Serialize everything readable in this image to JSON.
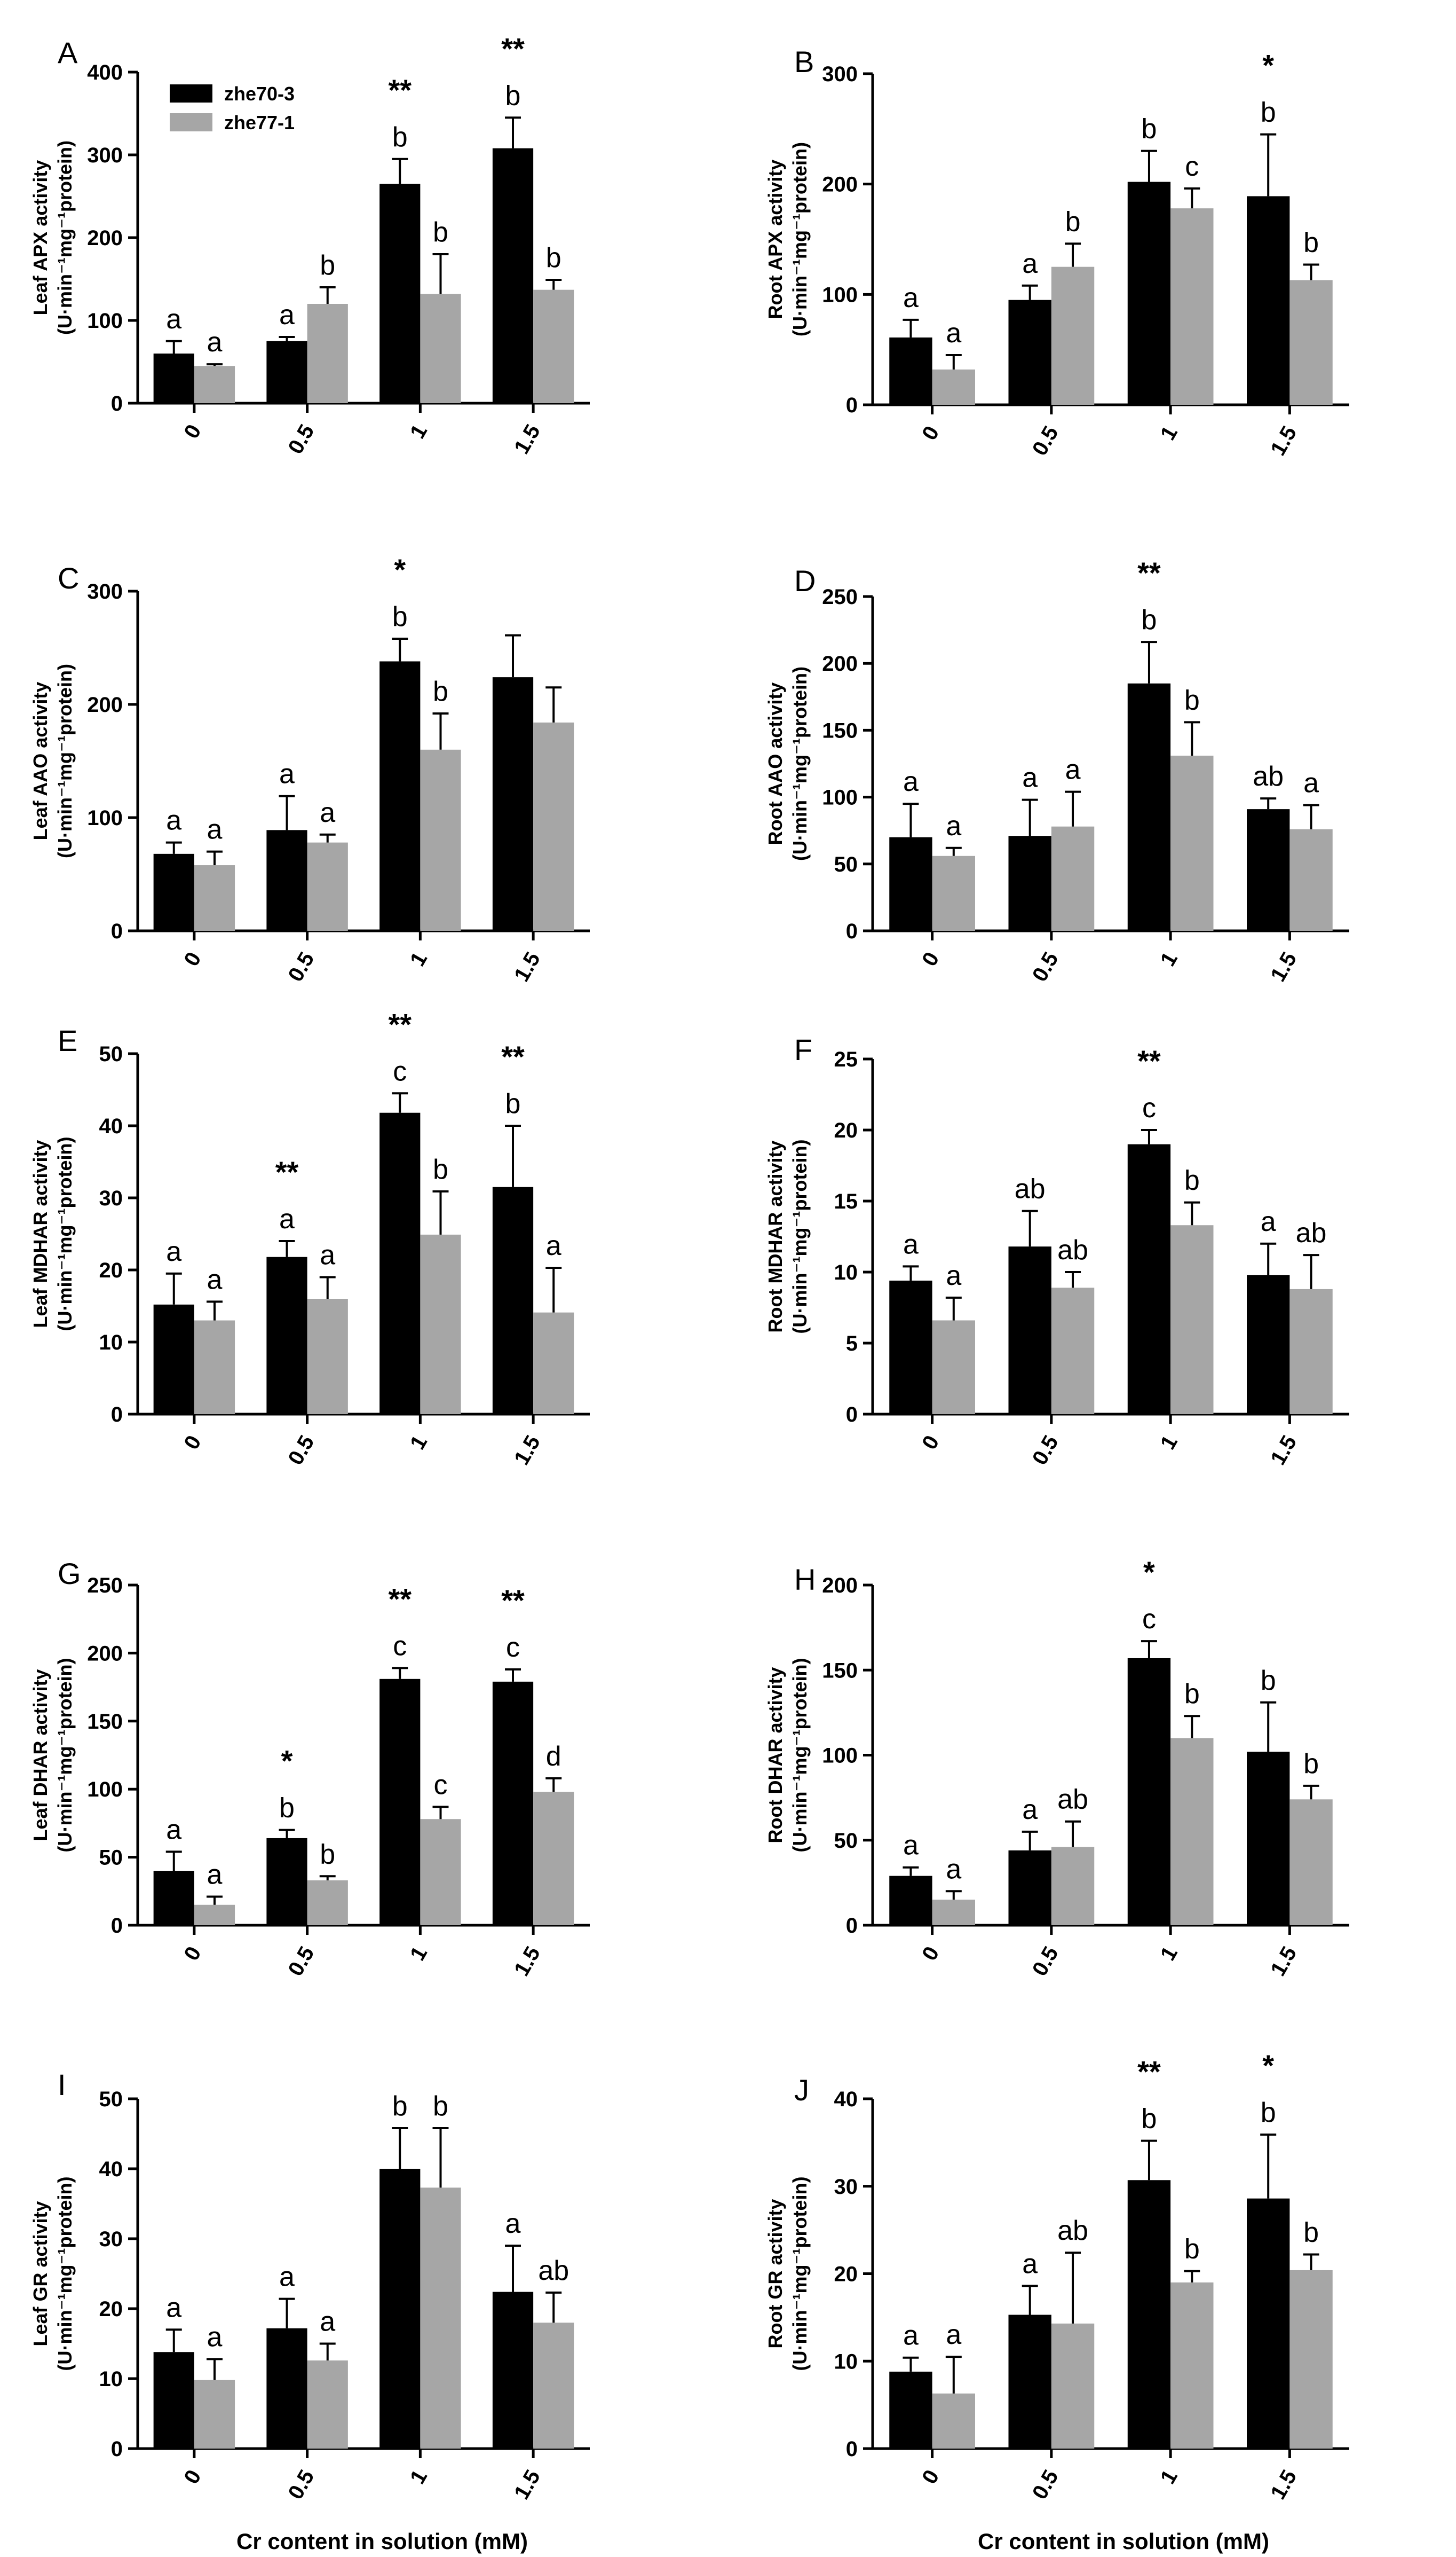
{
  "legend": [
    "zhe70-3",
    "zhe77-1"
  ],
  "x_axis_title": "Cr content in solution (mM)",
  "colors": {
    "series1": "#000000",
    "series2": "#a6a6a6"
  },
  "chart_data": [
    {
      "type": "bar",
      "panel": "A",
      "categories": [
        "0",
        "0.5",
        "1",
        "1.5"
      ],
      "ylim": [
        0,
        400
      ],
      "yticks": [
        0,
        100,
        200,
        300,
        400
      ],
      "ylabel_line1": "Leaf APX activity",
      "ylabel_line2": "(U·min⁻¹mg⁻¹protein)",
      "series": [
        {
          "name": "zhe70-3",
          "values": [
            60,
            75,
            265,
            308
          ],
          "errors": [
            15,
            5,
            30,
            37
          ],
          "letters": [
            "a",
            "a",
            "b",
            "b"
          ]
        },
        {
          "name": "zhe77-1",
          "values": [
            45,
            120,
            132,
            137
          ],
          "errors": [
            2,
            20,
            48,
            12
          ],
          "letters": [
            "a",
            "b",
            "b",
            "b"
          ]
        }
      ],
      "stars": [
        "",
        "",
        "**",
        "**"
      ]
    },
    {
      "type": "bar",
      "panel": "B",
      "categories": [
        "0",
        "0.5",
        "1",
        "1.5"
      ],
      "ylim": [
        0,
        300
      ],
      "yticks": [
        0,
        100,
        200,
        300
      ],
      "ylabel_line1": "Root APX activity",
      "ylabel_line2": "(U·min⁻¹mg⁻¹protein)",
      "series": [
        {
          "name": "zhe70-3",
          "values": [
            61,
            95,
            202,
            189
          ],
          "errors": [
            16,
            13,
            28,
            56
          ],
          "letters": [
            "a",
            "a",
            "b",
            "b"
          ]
        },
        {
          "name": "zhe77-1",
          "values": [
            32,
            125,
            178,
            113
          ],
          "errors": [
            13,
            21,
            18,
            14
          ],
          "letters": [
            "a",
            "b",
            "c",
            "b"
          ]
        }
      ],
      "stars": [
        "",
        "",
        "",
        "*"
      ]
    },
    {
      "type": "bar",
      "panel": "C",
      "categories": [
        "0",
        "0.5",
        "1",
        "1.5"
      ],
      "ylim": [
        0,
        300
      ],
      "yticks": [
        0,
        100,
        200,
        300
      ],
      "ylabel_line1": "Leaf AAO activity",
      "ylabel_line2": "(U·min⁻¹mg⁻¹protein)",
      "series": [
        {
          "name": "zhe70-3",
          "values": [
            68,
            89,
            238,
            224
          ],
          "errors": [
            10,
            30,
            20,
            37
          ],
          "letters": [
            "a",
            "a",
            "b",
            ""
          ]
        },
        {
          "name": "zhe77-1",
          "values": [
            58,
            78,
            160,
            184
          ],
          "errors": [
            12,
            7,
            32,
            31
          ],
          "letters": [
            "a",
            "a",
            "b",
            ""
          ]
        }
      ],
      "stars": [
        "",
        "",
        "*",
        ""
      ]
    },
    {
      "type": "bar",
      "panel": "D",
      "categories": [
        "0",
        "0.5",
        "1",
        "1.5"
      ],
      "ylim": [
        0,
        250
      ],
      "yticks": [
        0,
        50,
        100,
        150,
        200,
        250
      ],
      "ylabel_line1": "Root AAO activity",
      "ylabel_line2": "(U·min⁻¹mg⁻¹protein)",
      "series": [
        {
          "name": "zhe70-3",
          "values": [
            70,
            71,
            185,
            91
          ],
          "errors": [
            25,
            27,
            31,
            8
          ],
          "letters": [
            "a",
            "a",
            "b",
            "ab"
          ]
        },
        {
          "name": "zhe77-1",
          "values": [
            56,
            78,
            131,
            76
          ],
          "errors": [
            6,
            26,
            25,
            18
          ],
          "letters": [
            "a",
            "a",
            "b",
            "a"
          ]
        }
      ],
      "stars": [
        "",
        "",
        "**",
        ""
      ]
    },
    {
      "type": "bar",
      "panel": "E",
      "categories": [
        "0",
        "0.5",
        "1",
        "1.5"
      ],
      "ylim": [
        0,
        50
      ],
      "yticks": [
        0,
        10,
        20,
        30,
        40,
        50
      ],
      "ylabel_line1": "Leaf MDHAR activity",
      "ylabel_line2": "(U·min⁻¹mg⁻¹protein)",
      "series": [
        {
          "name": "zhe70-3",
          "values": [
            15.2,
            21.8,
            41.8,
            31.5
          ],
          "errors": [
            4.3,
            2.2,
            2.7,
            8.5
          ],
          "letters": [
            "a",
            "a",
            "c",
            "b"
          ]
        },
        {
          "name": "zhe77-1",
          "values": [
            13,
            16,
            24.9,
            14.1
          ],
          "errors": [
            2.6,
            3,
            6,
            6.2
          ],
          "letters": [
            "a",
            "a",
            "b",
            "a"
          ]
        }
      ],
      "stars": [
        "",
        "**",
        "**",
        "**"
      ]
    },
    {
      "type": "bar",
      "panel": "F",
      "categories": [
        "0",
        "0.5",
        "1",
        "1.5"
      ],
      "ylim": [
        0,
        25
      ],
      "yticks": [
        0,
        5,
        10,
        15,
        20,
        25
      ],
      "ylabel_line1": "Root MDHAR activity",
      "ylabel_line2": "(U·min⁻¹mg⁻¹protein)",
      "series": [
        {
          "name": "zhe70-3",
          "values": [
            9.4,
            11.8,
            19,
            9.8
          ],
          "errors": [
            1,
            2.5,
            1,
            2.2
          ],
          "letters": [
            "a",
            "ab",
            "c",
            "a"
          ]
        },
        {
          "name": "zhe77-1",
          "values": [
            6.6,
            8.9,
            13.3,
            8.8
          ],
          "errors": [
            1.6,
            1.1,
            1.6,
            2.4
          ],
          "letters": [
            "a",
            "ab",
            "b",
            "ab"
          ]
        }
      ],
      "stars": [
        "",
        "",
        "**",
        ""
      ]
    },
    {
      "type": "bar",
      "panel": "G",
      "categories": [
        "0",
        "0.5",
        "1",
        "1.5"
      ],
      "ylim": [
        0,
        250
      ],
      "yticks": [
        0,
        50,
        100,
        150,
        200,
        250
      ],
      "ylabel_line1": "Leaf DHAR activity",
      "ylabel_line2": "(U·min⁻¹mg⁻¹protein)",
      "series": [
        {
          "name": "zhe70-3",
          "values": [
            40,
            64,
            181,
            179
          ],
          "errors": [
            14,
            6,
            8,
            9
          ],
          "letters": [
            "a",
            "b",
            "c",
            "c"
          ]
        },
        {
          "name": "zhe77-1",
          "values": [
            15,
            33,
            78,
            98
          ],
          "errors": [
            6,
            3,
            9,
            10
          ],
          "letters": [
            "a",
            "b",
            "c",
            "d"
          ]
        }
      ],
      "stars": [
        "",
        "*",
        "**",
        "**"
      ]
    },
    {
      "type": "bar",
      "panel": "H",
      "categories": [
        "0",
        "0.5",
        "1",
        "1.5"
      ],
      "ylim": [
        0,
        200
      ],
      "yticks": [
        0,
        50,
        100,
        150,
        200
      ],
      "ylabel_line1": "Root DHAR activity",
      "ylabel_line2": "(U·min⁻¹mg⁻¹protein)",
      "series": [
        {
          "name": "zhe70-3",
          "values": [
            29,
            44,
            157,
            102
          ],
          "errors": [
            5,
            11,
            10,
            29
          ],
          "letters": [
            "a",
            "a",
            "c",
            "b"
          ]
        },
        {
          "name": "zhe77-1",
          "values": [
            15,
            46,
            110,
            74
          ],
          "errors": [
            5,
            15,
            13,
            8
          ],
          "letters": [
            "a",
            "ab",
            "b",
            "b"
          ]
        }
      ],
      "stars": [
        "",
        "",
        "*",
        ""
      ]
    },
    {
      "type": "bar",
      "panel": "I",
      "categories": [
        "0",
        "0.5",
        "1",
        "1.5"
      ],
      "ylim": [
        0,
        50
      ],
      "yticks": [
        0,
        10,
        20,
        30,
        40,
        50
      ],
      "ylabel_line1": "Leaf GR activity",
      "ylabel_line2": "(U·min⁻¹mg⁻¹protein)",
      "series": [
        {
          "name": "zhe70-3",
          "values": [
            13.8,
            17.2,
            40,
            22.4
          ],
          "errors": [
            3.2,
            4.2,
            5.8,
            6.6
          ],
          "letters": [
            "a",
            "a",
            "b",
            "a"
          ]
        },
        {
          "name": "zhe77-1",
          "values": [
            9.8,
            12.6,
            37.3,
            18
          ],
          "errors": [
            3,
            2.4,
            8.5,
            4.3
          ],
          "letters": [
            "a",
            "a",
            "b",
            "ab"
          ]
        }
      ],
      "stars": [
        "",
        "",
        "",
        ""
      ]
    },
    {
      "type": "bar",
      "panel": "J",
      "categories": [
        "0",
        "0.5",
        "1",
        "1.5"
      ],
      "ylim": [
        0,
        40
      ],
      "yticks": [
        0,
        10,
        20,
        30,
        40
      ],
      "ylabel_line1": "Root GR activity",
      "ylabel_line2": "(U·min⁻¹mg⁻¹protein)",
      "series": [
        {
          "name": "zhe70-3",
          "values": [
            8.8,
            15.3,
            30.7,
            28.6
          ],
          "errors": [
            1.6,
            3.3,
            4.5,
            7.3
          ],
          "letters": [
            "a",
            "a",
            "b",
            "b"
          ]
        },
        {
          "name": "zhe77-1",
          "values": [
            6.3,
            14.3,
            19,
            20.4
          ],
          "errors": [
            4.2,
            8.1,
            1.3,
            1.8
          ],
          "letters": [
            "a",
            "ab",
            "b",
            "b"
          ]
        }
      ],
      "stars": [
        "",
        "",
        "**",
        "*"
      ]
    }
  ]
}
